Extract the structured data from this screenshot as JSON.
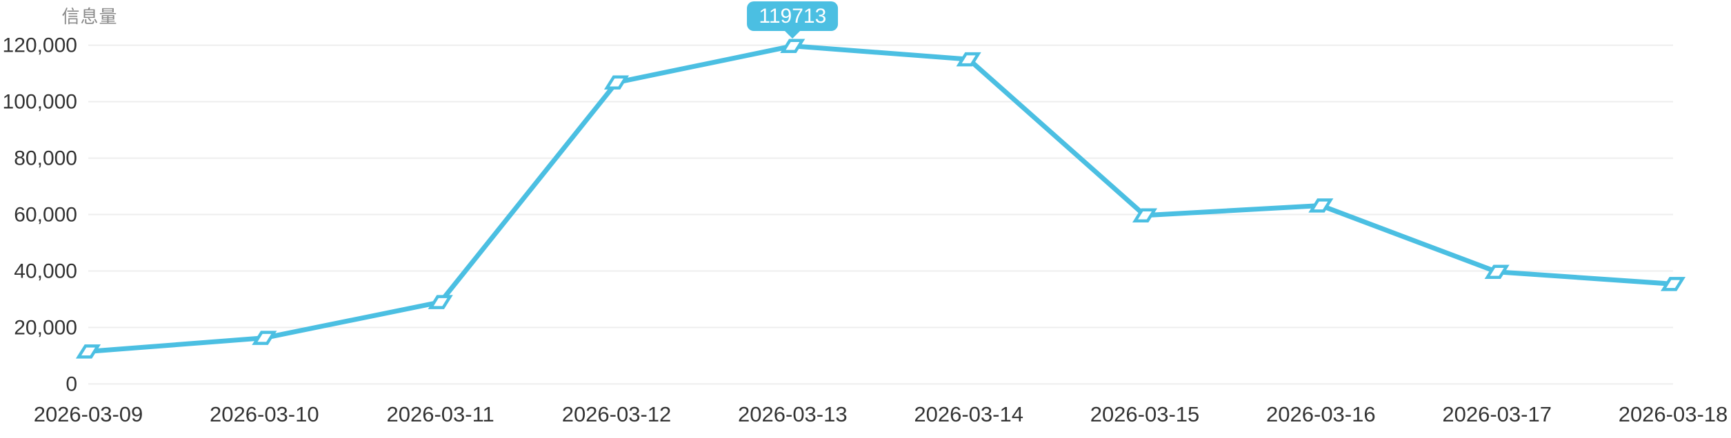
{
  "page": {
    "background": "#ffffff"
  },
  "chart_data": {
    "type": "line",
    "title": "",
    "ylabel": "信息量",
    "xlabel": "",
    "x": [
      "2026-03-09",
      "2026-03-10",
      "2026-03-11",
      "2026-03-12",
      "2026-03-13",
      "2026-03-14",
      "2026-03-15",
      "2026-03-16",
      "2026-03-17",
      "2026-03-18"
    ],
    "series": [
      {
        "name": "信息量",
        "values": [
          11500,
          16300,
          29000,
          106800,
          119713,
          115000,
          59700,
          63200,
          39700,
          35400
        ]
      }
    ],
    "ylim": [
      0,
      120000
    ],
    "y_ticks": [
      0,
      20000,
      40000,
      60000,
      80000,
      100000,
      120000
    ],
    "y_tick_labels": [
      "0",
      "20,000",
      "40,000",
      "60,000",
      "80,000",
      "100,000",
      "120,000"
    ],
    "grid": true,
    "legend_position": "none",
    "max_label": {
      "value": "119713",
      "point_index": 4
    },
    "marker_shape": "hollow-slanted-square",
    "colors": {
      "line": "#4bbfe2",
      "marker_fill": "#ffffff",
      "grid": "#eeeeee",
      "tick_text": "#333333",
      "axis_title": "#8a8a8a",
      "badge_bg": "#4bbfe2",
      "badge_text": "#ffffff"
    }
  }
}
